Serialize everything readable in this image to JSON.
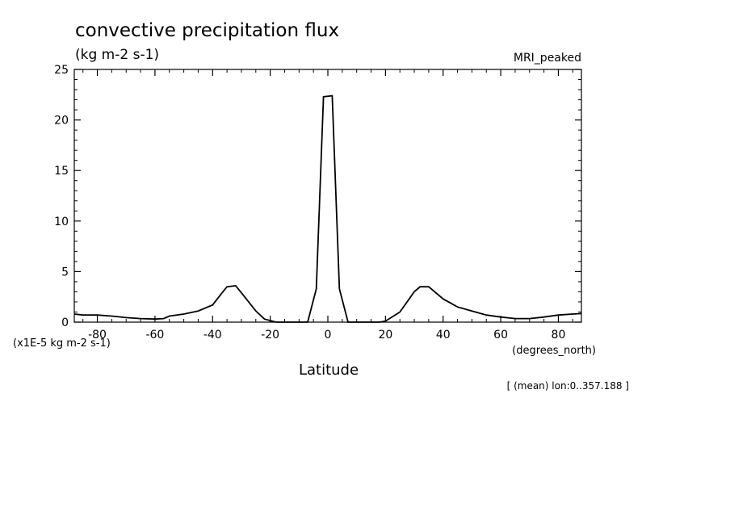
{
  "chart_data": {
    "type": "line",
    "title": "convective precipitation flux",
    "units_label": "(kg m-2 s-1)",
    "model_label": "MRI_peaked",
    "xlabel": "Latitude",
    "x_unit_label": "(degrees_north)",
    "y_scale_label": "(x1E-5 kg m-2 s-1)",
    "footnote": "[ (mean) lon:0..357.188 ]",
    "xlim": [
      -88,
      88
    ],
    "ylim": [
      0,
      25
    ],
    "x_ticks": [
      -80,
      -60,
      -40,
      -20,
      0,
      20,
      40,
      60,
      80
    ],
    "x_tick_labels": [
      "-80",
      "-60",
      "-40",
      "-20",
      "0",
      "20",
      "40",
      "60",
      "80"
    ],
    "y_ticks": [
      0,
      5,
      10,
      15,
      20,
      25
    ],
    "y_tick_labels": [
      "0",
      "5",
      "10",
      "15",
      "20",
      "25"
    ],
    "grid": false,
    "line_color": "#000000",
    "series": [
      {
        "x": [
          -88,
          -85,
          -80,
          -75,
          -70,
          -65,
          -60,
          -57,
          -55,
          -50,
          -45,
          -40,
          -37,
          -35,
          -32,
          -30,
          -25,
          -22,
          -18,
          -15,
          -11,
          -7,
          -4,
          -1.5,
          1.5,
          4,
          7,
          11,
          15,
          18,
          20,
          25,
          30,
          32,
          35,
          40,
          45,
          50,
          55,
          60,
          65,
          70,
          75,
          80,
          85,
          88
        ],
        "y": [
          0.8,
          0.7,
          0.7,
          0.6,
          0.45,
          0.35,
          0.3,
          0.35,
          0.6,
          0.8,
          1.1,
          1.7,
          2.8,
          3.5,
          3.6,
          2.9,
          1.1,
          0.3,
          0,
          0,
          0,
          0,
          3.3,
          22.3,
          22.4,
          3.3,
          0,
          0,
          0,
          0,
          0.1,
          1.0,
          3.0,
          3.5,
          3.5,
          2.3,
          1.5,
          1.1,
          0.7,
          0.5,
          0.35,
          0.35,
          0.5,
          0.7,
          0.8,
          0.85
        ]
      }
    ]
  }
}
